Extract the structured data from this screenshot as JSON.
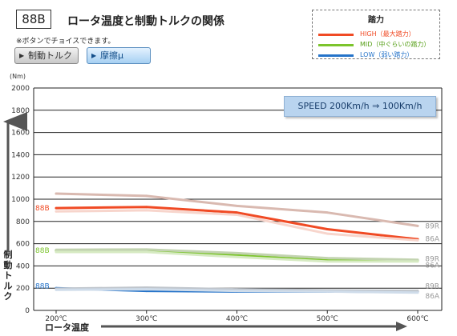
{
  "header": {
    "id_label": "88B",
    "title": "ロータ温度と制動トルクの関係",
    "note": "※ボタンでチョイスできます。"
  },
  "buttons": {
    "torque_label": "制動トルク",
    "friction_label": "摩擦μ",
    "arrow_glyph": "▶"
  },
  "legend": {
    "title": "踏力",
    "items": [
      {
        "label": "HIGH（最大踏力）",
        "color": "#f04a24"
      },
      {
        "label": "MID（中ぐらいの踏力）",
        "color": "#7cc42c"
      },
      {
        "label": "LOW（弱い踏力）",
        "color": "#2573c9"
      }
    ]
  },
  "speed_box": "SPEED 200Km/h ⇒ 100Km/h",
  "chart_data": {
    "type": "line",
    "unit_label": "(Nm)",
    "ylabel": "制動トルク",
    "xlabel": "ロータ温度",
    "ylim": [
      0,
      2000
    ],
    "yticks": [
      0,
      200,
      400,
      600,
      800,
      1000,
      1200,
      1400,
      1600,
      1800,
      2000
    ],
    "x": [
      200,
      300,
      400,
      500,
      600
    ],
    "x_tick_labels": [
      "200℃",
      "300℃",
      "400℃",
      "500℃",
      "600℃"
    ],
    "xlim": [
      200,
      600
    ],
    "grid": true,
    "series": [
      {
        "name": "88B",
        "group": "HIGH",
        "color": "#f04a24",
        "width": 3,
        "x": [
          200,
          300,
          400,
          500,
          600
        ],
        "values": [
          920,
          930,
          880,
          730,
          640
        ]
      },
      {
        "name": "89R",
        "group": "HIGH",
        "color": "#d9b9b0",
        "width": 3,
        "x": [
          200,
          300,
          400,
          500,
          600
        ],
        "values": [
          1050,
          1030,
          940,
          880,
          760
        ]
      },
      {
        "name": "86A",
        "group": "HIGH",
        "color": "#f7d5cc",
        "width": 3,
        "x": [
          200,
          300,
          400,
          500,
          600
        ],
        "values": [
          890,
          900,
          860,
          690,
          630
        ]
      },
      {
        "name": "88B",
        "group": "MID",
        "color": "#7cc42c",
        "width": 3,
        "x": [
          200,
          300,
          400,
          500,
          600
        ],
        "values": [
          535,
          535,
          495,
          450,
          445
        ]
      },
      {
        "name": "89R",
        "group": "MID",
        "color": "#c2d3b0",
        "width": 3,
        "x": [
          200,
          300,
          400,
          500,
          600
        ],
        "values": [
          545,
          548,
          515,
          470,
          455
        ]
      },
      {
        "name": "86A",
        "group": "MID",
        "color": "#d6eac2",
        "width": 3,
        "x": [
          200,
          300,
          400,
          500,
          600
        ],
        "values": [
          525,
          525,
          480,
          440,
          440
        ]
      },
      {
        "name": "88B",
        "group": "LOW",
        "color": "#2573c9",
        "width": 3,
        "x": [
          200,
          300,
          400,
          500,
          600
        ],
        "values": [
          200,
          175,
          170,
          170,
          165
        ]
      },
      {
        "name": "89R",
        "group": "LOW",
        "color": "#bfc5cc",
        "width": 3,
        "x": [
          200,
          300,
          400,
          500,
          600
        ],
        "values": [
          195,
          205,
          190,
          180,
          175
        ]
      },
      {
        "name": "86A",
        "group": "LOW",
        "color": "#cfdcea",
        "width": 3,
        "x": [
          200,
          300,
          400,
          500,
          600
        ],
        "values": [
          185,
          190,
          175,
          170,
          160
        ]
      }
    ],
    "series_labels": [
      {
        "text": "88B",
        "side": "left",
        "at": 920,
        "color": "#f04a24"
      },
      {
        "text": "88B",
        "side": "left",
        "at": 540,
        "color": "#7cc42c"
      },
      {
        "text": "88B",
        "side": "left",
        "at": 220,
        "color": "#2573c9"
      },
      {
        "text": "89R",
        "side": "right",
        "at": 760,
        "color": "#999999"
      },
      {
        "text": "86A",
        "side": "right",
        "at": 645,
        "color": "#999999"
      },
      {
        "text": "89R",
        "side": "right",
        "at": 465,
        "color": "#999999"
      },
      {
        "text": "86A",
        "side": "right",
        "at": 405,
        "color": "#999999"
      },
      {
        "text": "89R",
        "side": "right",
        "at": 220,
        "color": "#999999"
      },
      {
        "text": "86A",
        "side": "right",
        "at": 130,
        "color": "#999999"
      }
    ]
  }
}
